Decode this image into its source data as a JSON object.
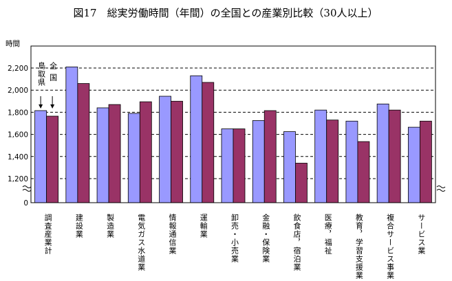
{
  "chart_data": {
    "type": "bar",
    "title": "図17　総実労働時間（年間）の全国との産業別比較（30人以上）",
    "ylabel": "時間",
    "ylim": [
      1000,
      2400
    ],
    "axis_break": true,
    "yticks": [
      "0",
      "1,200",
      "1,400",
      "1,600",
      "1,800",
      "2,000",
      "2,200"
    ],
    "grid": "dashed",
    "categories": [
      "調査産業計",
      "建設業",
      "製造業",
      "電気ガス水道業",
      "情報通信業",
      "運輸業",
      "卸売・小売業",
      "金融・保険業",
      "飲食店，宿泊業",
      "医療，福祉",
      "教育，学習支援業",
      "複合サービス事業",
      "サービス業"
    ],
    "series": [
      {
        "name": "鳥取県",
        "color": "#9999ff",
        "values": [
          1815,
          2210,
          1840,
          1790,
          1945,
          2130,
          1650,
          1725,
          1625,
          1820,
          1720,
          1875,
          1665
        ]
      },
      {
        "name": "全国",
        "color": "#993366",
        "values": [
          1765,
          2060,
          1870,
          1895,
          1900,
          2070,
          1650,
          1815,
          1340,
          1730,
          1535,
          1820,
          1720
        ]
      }
    ],
    "legend": "inline-vertical-labels-above-first-category"
  }
}
